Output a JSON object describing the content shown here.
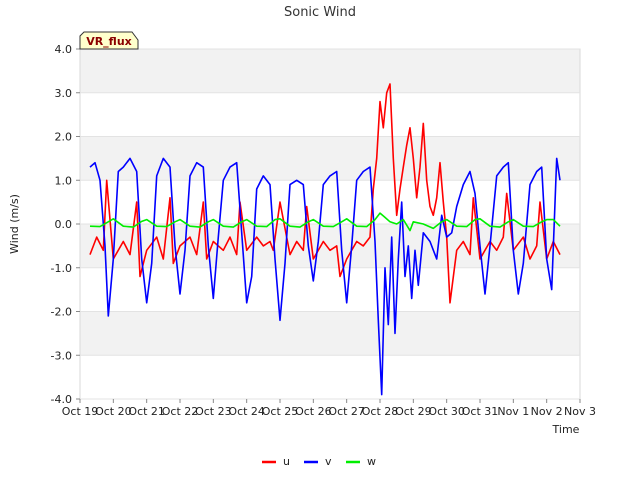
{
  "chart_data": {
    "type": "line",
    "title": "Sonic Wind",
    "xlabel": "Time",
    "ylabel": "Wind (m/s)",
    "site_label": "VR_flux",
    "ylim": [
      -4.0,
      4.0
    ],
    "yticks": [
      "4.0",
      "3.0",
      "2.0",
      "1.0",
      "0.0",
      "-1.0",
      "-2.0",
      "-3.0",
      "-4.0"
    ],
    "ytick_values": [
      4,
      3,
      2,
      1,
      0,
      -1,
      -2,
      -3,
      -4
    ],
    "xlim": [
      19,
      34
    ],
    "xticks": [
      "Oct 19",
      "Oct 20",
      "Oct 21",
      "Oct 22",
      "Oct 23",
      "Oct 24",
      "Oct 25",
      "Oct 26",
      "Oct 27",
      "Oct 28",
      "Oct 29",
      "Oct 30",
      "Oct 31",
      "Nov 1",
      "Nov 2",
      "Nov 3"
    ],
    "xtick_values": [
      19,
      20,
      21,
      22,
      23,
      24,
      25,
      26,
      27,
      28,
      29,
      30,
      31,
      32,
      33,
      34
    ],
    "x_units": "days since Oct 1 (day 32 = Nov 1)",
    "band_colors": [
      "#f2f2f2",
      "#ffffff"
    ],
    "series": [
      {
        "name": "u",
        "color": "#ff0000",
        "x": [
          19.3,
          19.5,
          19.7,
          19.8,
          20.0,
          20.3,
          20.5,
          20.7,
          20.8,
          21.0,
          21.3,
          21.5,
          21.7,
          21.8,
          22.0,
          22.3,
          22.5,
          22.7,
          22.8,
          23.0,
          23.3,
          23.5,
          23.7,
          23.8,
          24.0,
          24.3,
          24.5,
          24.7,
          24.8,
          25.0,
          25.3,
          25.5,
          25.7,
          25.8,
          26.0,
          26.3,
          26.5,
          26.7,
          26.8,
          27.0,
          27.3,
          27.5,
          27.7,
          27.8,
          27.9,
          28.0,
          28.1,
          28.2,
          28.3,
          28.4,
          28.5,
          28.6,
          28.7,
          28.8,
          28.9,
          29.0,
          29.1,
          29.2,
          29.3,
          29.4,
          29.5,
          29.6,
          29.7,
          29.8,
          29.9,
          30.0,
          30.1,
          30.3,
          30.5,
          30.7,
          30.8,
          31.0,
          31.3,
          31.5,
          31.7,
          31.8,
          32.0,
          32.3,
          32.5,
          32.7,
          32.8,
          33.0,
          33.2,
          33.4
        ],
        "values": [
          -0.7,
          -0.3,
          -0.6,
          1.0,
          -0.8,
          -0.4,
          -0.7,
          0.5,
          -1.2,
          -0.6,
          -0.3,
          -0.8,
          0.6,
          -0.9,
          -0.5,
          -0.3,
          -0.7,
          0.5,
          -0.8,
          -0.4,
          -0.6,
          -0.3,
          -0.7,
          0.5,
          -0.6,
          -0.3,
          -0.5,
          -0.4,
          -0.6,
          0.5,
          -0.7,
          -0.4,
          -0.6,
          0.4,
          -0.8,
          -0.4,
          -0.6,
          -0.5,
          -1.2,
          -0.8,
          -0.4,
          -0.5,
          -0.3,
          0.8,
          1.5,
          2.8,
          2.2,
          3.0,
          3.2,
          1.5,
          0.2,
          0.8,
          1.3,
          1.8,
          2.2,
          1.5,
          0.6,
          1.3,
          2.3,
          1.0,
          0.4,
          0.2,
          0.6,
          1.4,
          0.5,
          -0.3,
          -1.8,
          -0.6,
          -0.4,
          -0.7,
          0.6,
          -0.8,
          -0.4,
          -0.6,
          -0.3,
          0.7,
          -0.6,
          -0.3,
          -0.8,
          -0.5,
          0.5,
          -0.8,
          -0.4,
          -0.7
        ]
      },
      {
        "name": "v",
        "color": "#0000ff",
        "x": [
          19.3,
          19.45,
          19.6,
          19.75,
          19.85,
          20.0,
          20.15,
          20.3,
          20.5,
          20.7,
          20.85,
          21.0,
          21.15,
          21.3,
          21.5,
          21.7,
          21.85,
          22.0,
          22.15,
          22.3,
          22.5,
          22.7,
          22.85,
          23.0,
          23.15,
          23.3,
          23.5,
          23.7,
          23.85,
          24.0,
          24.15,
          24.3,
          24.5,
          24.7,
          24.85,
          25.0,
          25.15,
          25.3,
          25.5,
          25.7,
          25.85,
          26.0,
          26.15,
          26.3,
          26.5,
          26.7,
          26.85,
          27.0,
          27.15,
          27.3,
          27.5,
          27.7,
          27.85,
          27.95,
          28.05,
          28.15,
          28.25,
          28.35,
          28.45,
          28.55,
          28.65,
          28.75,
          28.85,
          28.95,
          29.05,
          29.15,
          29.3,
          29.5,
          29.7,
          29.85,
          30.0,
          30.15,
          30.3,
          30.5,
          30.7,
          30.85,
          31.0,
          31.15,
          31.3,
          31.5,
          31.7,
          31.85,
          32.0,
          32.15,
          32.3,
          32.5,
          32.7,
          32.85,
          33.0,
          33.15,
          33.3,
          33.4
        ],
        "values": [
          1.3,
          1.4,
          1.0,
          -0.5,
          -2.1,
          -0.8,
          1.2,
          1.3,
          1.5,
          1.2,
          -0.8,
          -1.8,
          -0.9,
          1.1,
          1.5,
          1.3,
          -0.5,
          -1.6,
          -0.6,
          1.1,
          1.4,
          1.3,
          -0.5,
          -1.7,
          -0.3,
          1.0,
          1.3,
          1.4,
          -0.2,
          -1.8,
          -1.2,
          0.8,
          1.1,
          0.9,
          -0.8,
          -2.2,
          -0.9,
          0.9,
          1.0,
          0.9,
          -0.5,
          -1.3,
          -0.4,
          0.9,
          1.1,
          1.2,
          -0.6,
          -1.8,
          -0.5,
          1.0,
          1.2,
          1.3,
          -0.4,
          -2.2,
          -3.9,
          -1.0,
          -2.3,
          -0.3,
          -2.5,
          -0.8,
          0.5,
          -1.2,
          -0.5,
          -1.7,
          -0.6,
          -1.4,
          -0.2,
          -0.4,
          -0.8,
          0.2,
          -0.3,
          -0.2,
          0.4,
          0.9,
          1.2,
          0.7,
          -0.5,
          -1.6,
          -0.5,
          1.1,
          1.3,
          1.4,
          -0.6,
          -1.6,
          -0.9,
          0.9,
          1.2,
          1.3,
          -0.8,
          -1.5,
          1.5,
          1.0
        ]
      },
      {
        "name": "w",
        "color": "#00ee00",
        "x": [
          19.3,
          19.6,
          19.85,
          20.0,
          20.3,
          20.6,
          20.85,
          21.0,
          21.3,
          21.6,
          21.85,
          22.0,
          22.3,
          22.6,
          22.85,
          23.0,
          23.3,
          23.6,
          23.85,
          24.0,
          24.3,
          24.6,
          24.85,
          25.0,
          25.3,
          25.6,
          25.85,
          26.0,
          26.3,
          26.6,
          26.85,
          27.0,
          27.3,
          27.6,
          27.85,
          28.0,
          28.15,
          28.3,
          28.5,
          28.7,
          28.9,
          29.0,
          29.3,
          29.6,
          29.85,
          30.0,
          30.3,
          30.6,
          30.85,
          31.0,
          31.3,
          31.6,
          31.85,
          32.0,
          32.3,
          32.6,
          32.85,
          33.0,
          33.2,
          33.4
        ],
        "values": [
          -0.05,
          -0.06,
          0.05,
          0.12,
          -0.05,
          -0.07,
          0.06,
          0.1,
          -0.05,
          -0.06,
          0.05,
          0.1,
          -0.05,
          -0.07,
          0.05,
          0.1,
          -0.05,
          -0.07,
          0.05,
          0.1,
          -0.05,
          -0.06,
          0.1,
          0.12,
          -0.05,
          -0.07,
          0.05,
          0.1,
          -0.05,
          -0.06,
          0.05,
          0.12,
          -0.05,
          -0.06,
          0.1,
          0.25,
          0.15,
          0.05,
          0.0,
          0.1,
          -0.15,
          0.05,
          0.0,
          -0.1,
          0.05,
          0.1,
          -0.05,
          -0.06,
          0.1,
          0.12,
          -0.05,
          -0.07,
          0.05,
          0.1,
          -0.05,
          -0.06,
          0.05,
          0.1,
          0.1,
          -0.05
        ]
      }
    ],
    "legend": {
      "position": "bottom-center",
      "entries": [
        "u",
        "v",
        "w"
      ]
    }
  }
}
